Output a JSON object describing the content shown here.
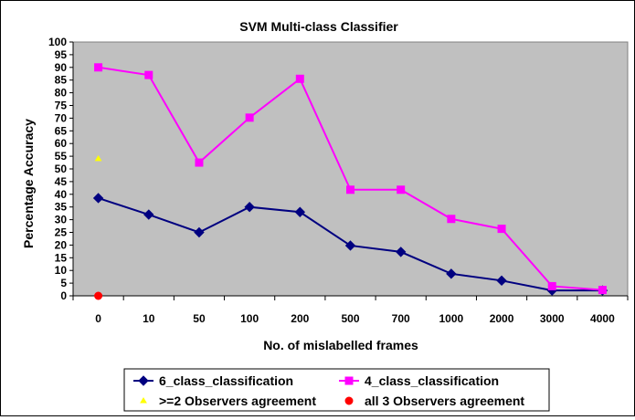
{
  "chart_data": {
    "type": "line",
    "title": "SVM Multi-class Classifier",
    "xlabel": "No. of mislabelled frames",
    "ylabel": "Percentage Accuracy",
    "categories": [
      "0",
      "10",
      "50",
      "100",
      "200",
      "500",
      "700",
      "1000",
      "2000",
      "3000",
      "4000"
    ],
    "ylim": [
      0,
      100
    ],
    "yticks": [
      0,
      5,
      10,
      15,
      20,
      25,
      30,
      35,
      40,
      45,
      50,
      55,
      60,
      65,
      70,
      75,
      80,
      85,
      90,
      95,
      100
    ],
    "grid": false,
    "plot_background": "#C0C0C0",
    "legend_position": "bottom",
    "series": [
      {
        "name": "6_class_classification",
        "color": "#000080",
        "marker": "diamond",
        "values": [
          38.5,
          32,
          25,
          35,
          33,
          19.8,
          17.3,
          8.7,
          6,
          2.1,
          2.1
        ]
      },
      {
        "name": "4_class_classification",
        "color": "#FF00FF",
        "marker": "square",
        "values": [
          90,
          87,
          52.5,
          70.2,
          85.5,
          41.8,
          41.8,
          30.3,
          26.4,
          3.8,
          2.3
        ]
      },
      {
        "name": ">=2 Observers agreement",
        "color": "#FFFF00",
        "marker": "triangle",
        "values": [
          54,
          null,
          null,
          null,
          null,
          null,
          null,
          null,
          null,
          null,
          null
        ]
      },
      {
        "name": "all 3 Observers agreement",
        "color": "#FF0000",
        "marker": "circle",
        "values": [
          0,
          null,
          null,
          null,
          null,
          null,
          null,
          null,
          null,
          null,
          null
        ]
      }
    ]
  }
}
